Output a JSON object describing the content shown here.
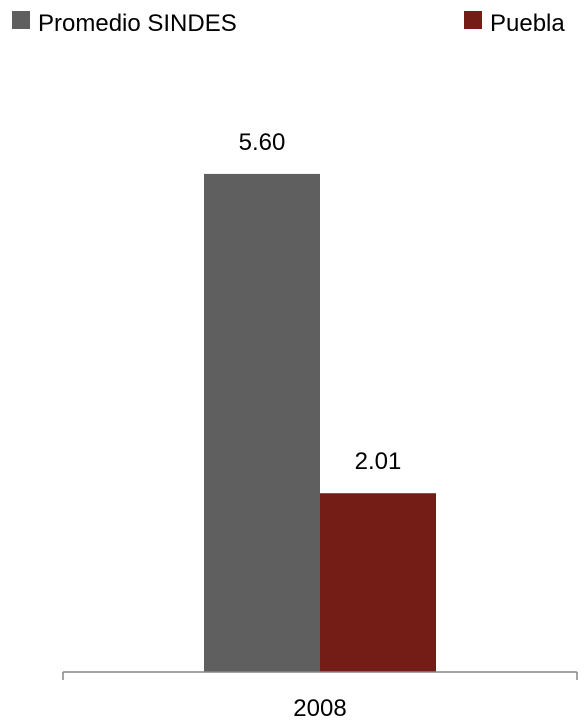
{
  "chart_data": {
    "type": "bar",
    "categories": [
      "2008"
    ],
    "series": [
      {
        "name": "Promedio SINDES",
        "values": [
          5.6
        ],
        "labels": [
          "5.60"
        ],
        "color": "#5f5f5f"
      },
      {
        "name": "Puebla",
        "values": [
          2.01
        ],
        "labels": [
          "2.01"
        ],
        "color": "#731d16"
      }
    ],
    "ylim": [
      0,
      6.24
    ],
    "legend_position": "top",
    "grid": false,
    "axis_color": "#868686"
  }
}
